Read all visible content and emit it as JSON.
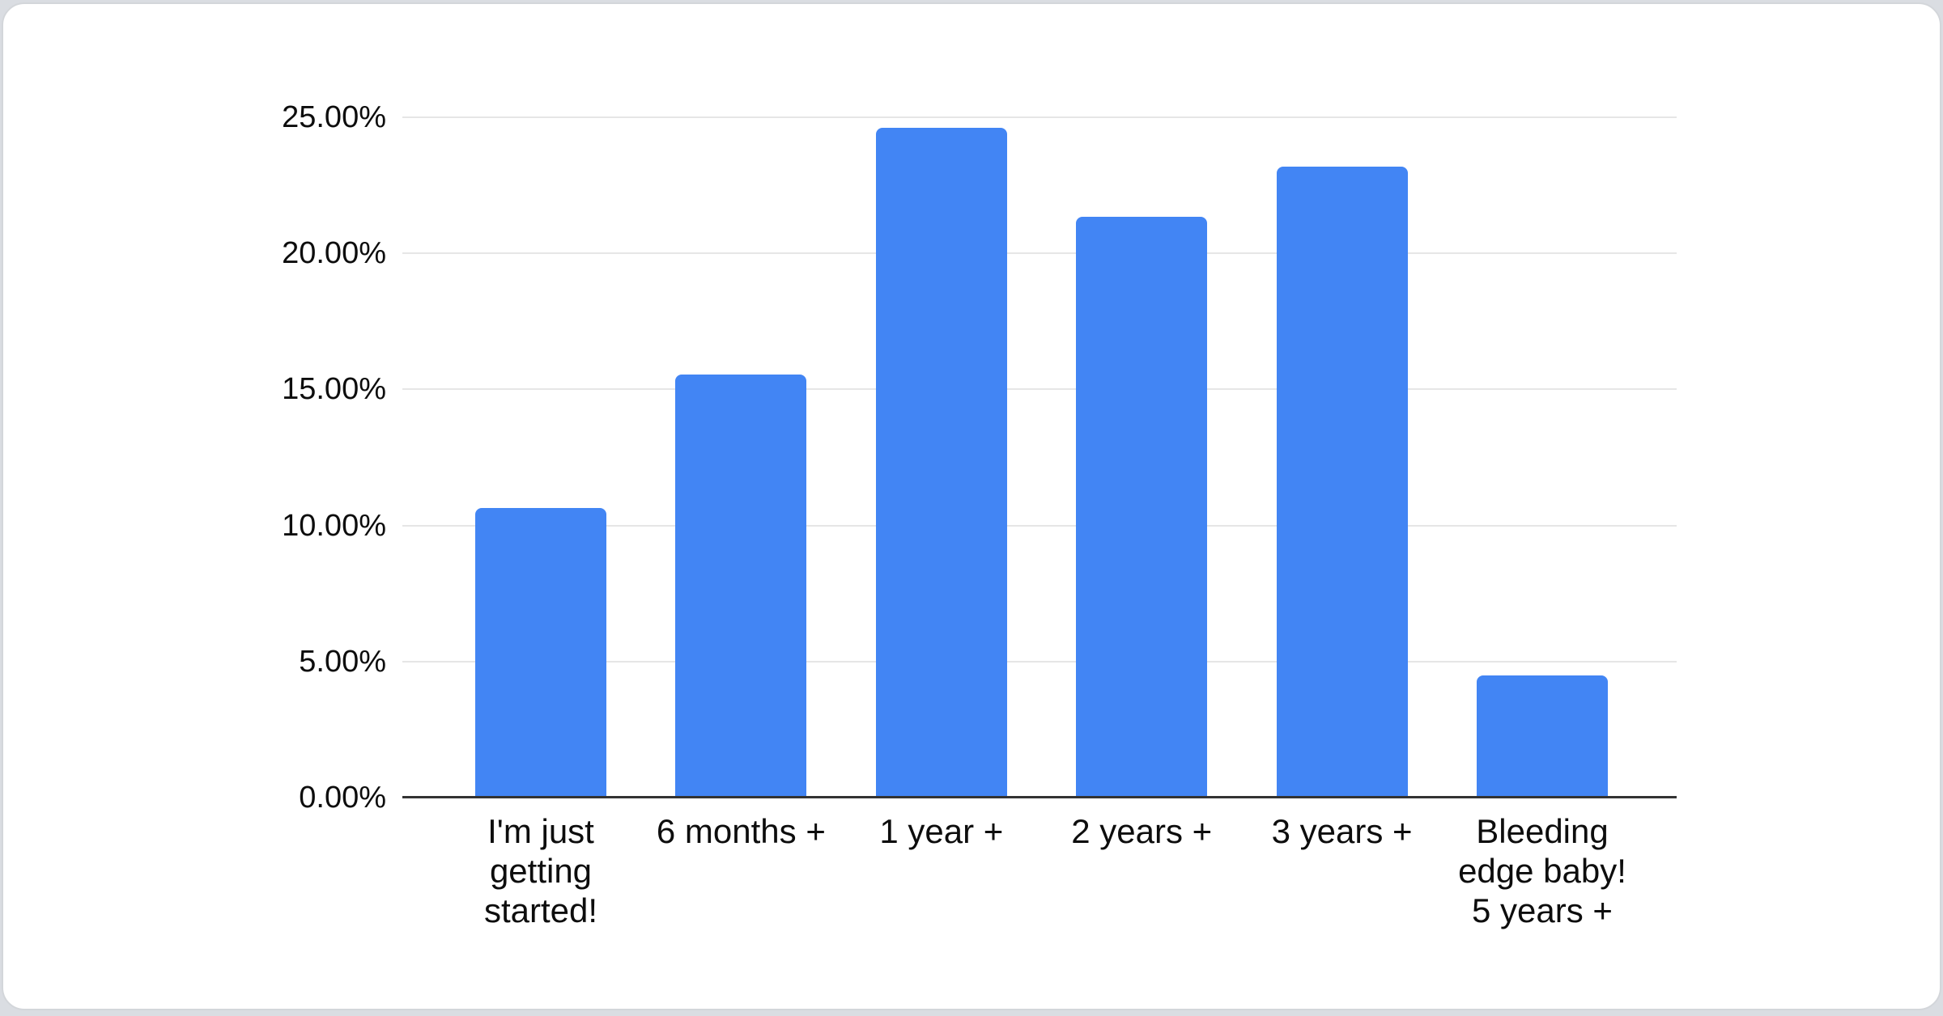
{
  "page": {
    "background_color": "#dadde2"
  },
  "card": {
    "background_color": "#ffffff",
    "border_color": "#d3d6da"
  },
  "chart_data": {
    "type": "bar",
    "categories": [
      "I'm just getting started!",
      "6 months +",
      "1 year +",
      "2 years +",
      "3 years +",
      "Bleeding edge baby! 5 years +"
    ],
    "category_display_lines": [
      [
        "I'm just",
        "getting",
        "started!"
      ],
      [
        "6 months +"
      ],
      [
        "1 year +"
      ],
      [
        "2 years +"
      ],
      [
        "3 years +"
      ],
      [
        "Bleeding",
        "edge baby!",
        "5 years +"
      ]
    ],
    "values": [
      10.65,
      15.55,
      24.6,
      21.35,
      23.2,
      4.5
    ],
    "value_unit": "%",
    "y_ticks": [
      {
        "value": 0,
        "label": "0.00%"
      },
      {
        "value": 5,
        "label": "5.00%"
      },
      {
        "value": 10,
        "label": "10.00%"
      },
      {
        "value": 15,
        "label": "15.00%"
      },
      {
        "value": 20,
        "label": "20.00%"
      },
      {
        "value": 25,
        "label": "25.00%"
      }
    ],
    "ylim": [
      0,
      25
    ],
    "grid": true,
    "legend": "none",
    "bar_color": "#4285f4",
    "gridline_color": "#e6e6e6",
    "axis_color": "#333333",
    "text_color": "#0d0d0d"
  }
}
